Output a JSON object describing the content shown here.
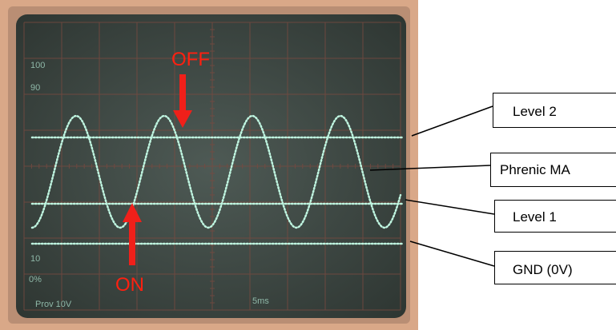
{
  "screen": {
    "scale_labels": [
      "100",
      "90",
      "10",
      "0%"
    ],
    "channel": "Prov 10V",
    "timebase": "5ms"
  },
  "annotations": {
    "off": "OFF",
    "on": "ON"
  },
  "labels": [
    "Level 2",
    "Phrenic MA",
    "Level 1",
    "GND (0V)"
  ]
}
